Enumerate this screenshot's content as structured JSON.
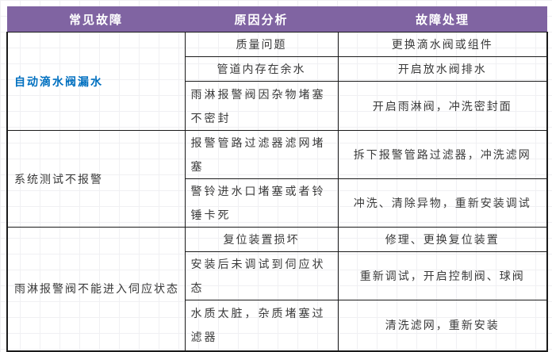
{
  "colors": {
    "header_bg": "#8064A2",
    "header_text": "#FFFFFF",
    "fault_highlight": "#0070C0",
    "body_text": "#3A3A3A",
    "border": "#1A1A1A"
  },
  "table": {
    "headers": [
      "常见故障",
      "原因分析",
      "故障处理"
    ],
    "sections": [
      {
        "fault": "自动滴水阀漏水",
        "highlight": true,
        "rows": [
          {
            "cause": "质量问题",
            "fix": "更换滴水阀或组件"
          },
          {
            "cause": "管道内存在余水",
            "fix": "开启放水阀排水"
          },
          {
            "cause": "雨淋报警阀因杂物堵塞不密封",
            "fix": "开启雨淋阀，冲洗密封面"
          }
        ]
      },
      {
        "fault": "系统测试不报警",
        "highlight": false,
        "rows": [
          {
            "cause": "报警管路过滤器滤网堵塞",
            "fix": "拆下报警管路过滤器，冲洗滤网"
          },
          {
            "cause": "警铃进水口堵塞或者铃锤卡死",
            "fix": "冲洗、清除异物，重新安装调试"
          }
        ]
      },
      {
        "fault": "雨淋报警阀不能进入伺应状态",
        "highlight": false,
        "rows": [
          {
            "cause": "复位装置损坏",
            "fix": "修理、更换复位装置"
          },
          {
            "cause": "安装后未调试到伺应状态",
            "fix": "重新调试，开启控制阀、球阀"
          },
          {
            "cause": "水质太脏，杂质堵塞过滤器",
            "fix": "清洗滤网，重新安装"
          }
        ]
      }
    ]
  }
}
